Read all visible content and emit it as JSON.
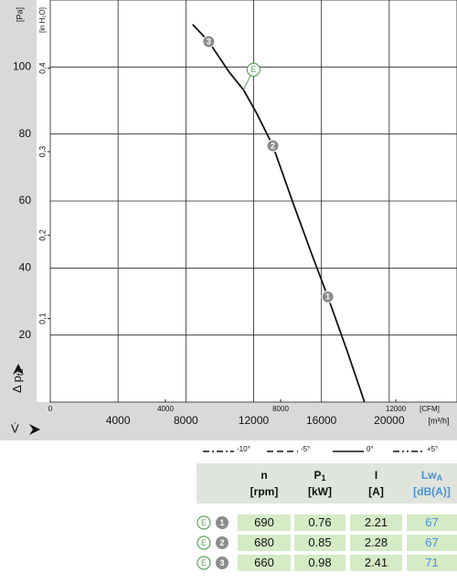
{
  "chart_data": {
    "type": "line",
    "y_unit": "[Pa]",
    "y2_unit": "[in H₂O]",
    "y_label": "Δ p",
    "y_label_sub": "fa",
    "x_label": "V̇",
    "x_unit": "[m³/h]",
    "x2_unit": "[CFM]",
    "xlim": [
      0,
      24000
    ],
    "xticks": [
      4000,
      8000,
      12000,
      16000,
      20000
    ],
    "x2lim": [
      0,
      14126
    ],
    "x2ticks": [
      0,
      4000,
      8000,
      12000
    ],
    "ylim": [
      0,
      120
    ],
    "yticks": [
      20,
      40,
      60,
      80,
      100
    ],
    "y2lim": [
      0,
      0.4817
    ],
    "y2ticks": [
      {
        "value": 0.1,
        "label": "0,1"
      },
      {
        "value": 0.2,
        "label": "0,2"
      },
      {
        "value": 0.3,
        "label": "0,3"
      },
      {
        "value": 0.4,
        "label": "0,4"
      }
    ],
    "grid": true,
    "series": [
      {
        "name": "0°",
        "color": "#111111",
        "x": [
          8400,
          9350,
          10540,
          11400,
          12200,
          13135,
          14320,
          15400,
          16378,
          17500,
          18540
        ],
        "values": [
          112.7,
          107.6,
          98.6,
          93.2,
          86.0,
          76.5,
          59.5,
          44.6,
          31.4,
          15.5,
          0
        ]
      }
    ],
    "legend": [
      {
        "name": "-10°",
        "dash": "7 3 2 3"
      },
      {
        "name": "-5°",
        "dash": "7 4"
      },
      {
        "name": "0°",
        "dash": "none"
      },
      {
        "name": "+5°",
        "dash": "7 3 2 3 2 3"
      }
    ],
    "points": [
      {
        "label": "1",
        "x": 16378,
        "y": 31.4
      },
      {
        "label": "2",
        "x": 13135,
        "y": 76.5
      },
      {
        "label": "3",
        "x": 9350,
        "y": 107.6
      }
    ],
    "annotation": {
      "label": "E",
      "x": 11400,
      "y": 93.2
    }
  },
  "table": {
    "headers": [
      {
        "text": "n",
        "sub": "",
        "unit": "[rpm]"
      },
      {
        "text": "P",
        "sub": "1",
        "unit": "[kW]"
      },
      {
        "text": "I",
        "sub": "",
        "unit": "[A]"
      },
      {
        "text": "Lw",
        "sub": "A",
        "unit": "[dB(A)]"
      }
    ],
    "rows": [
      {
        "mode": "E",
        "point": "1",
        "values": [
          "690",
          "0.76",
          "2.21",
          "67"
        ]
      },
      {
        "mode": "E",
        "point": "2",
        "values": [
          "680",
          "0.85",
          "2.28",
          "67"
        ]
      },
      {
        "mode": "E",
        "point": "3",
        "values": [
          "660",
          "0.98",
          "2.41",
          "71"
        ]
      }
    ]
  }
}
